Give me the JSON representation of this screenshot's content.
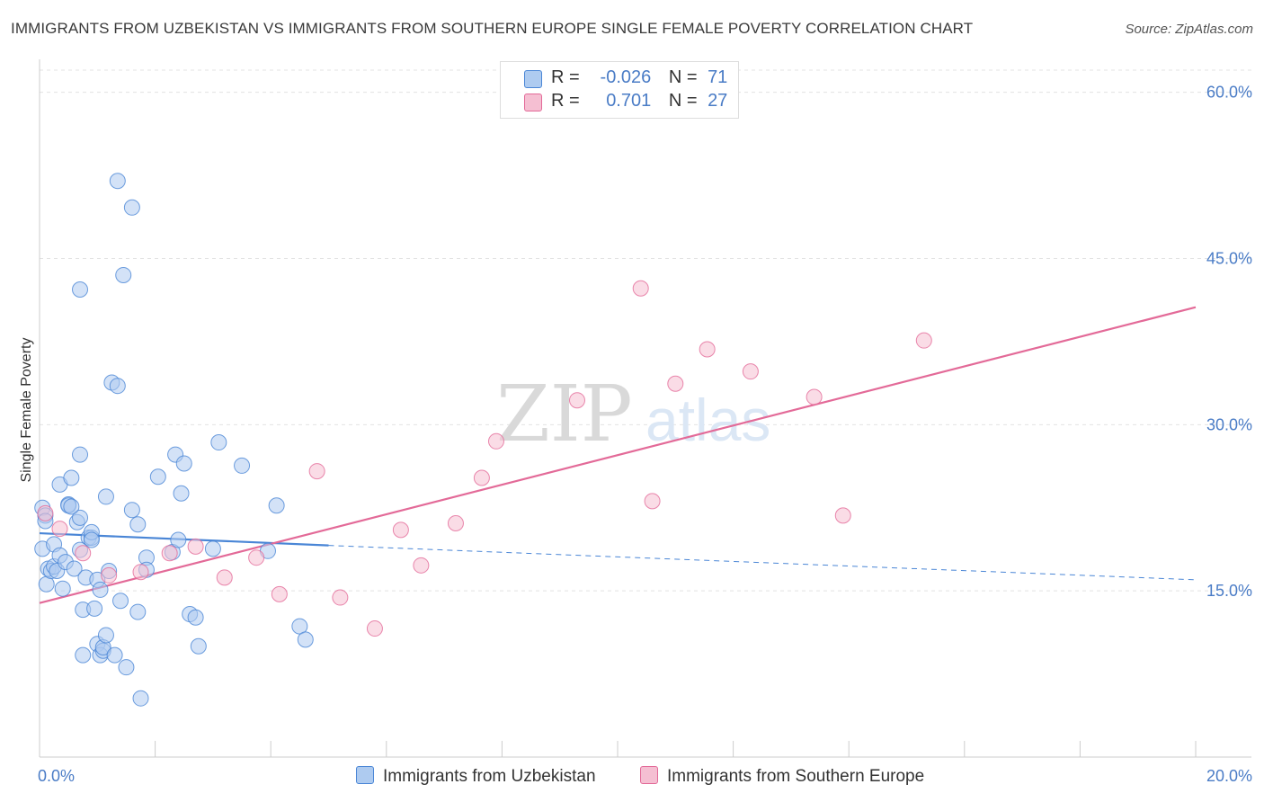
{
  "title": "IMMIGRANTS FROM UZBEKISTAN VS IMMIGRANTS FROM SOUTHERN EUROPE SINGLE FEMALE POVERTY CORRELATION CHART",
  "source": "Source: ZipAtlas.com",
  "watermark": {
    "zip": "ZIP",
    "atlas": "atlas"
  },
  "colors": {
    "blue": "#4a86d6",
    "blue_fill": "#aecbf0",
    "pink": "#e36a98",
    "pink_fill": "#f5bfd2",
    "tick_text": "#4a7cc6"
  },
  "legend": {
    "rows": [
      {
        "r_label": "R =",
        "r_value": "-0.026",
        "n_label": "N =",
        "n_value": "71"
      },
      {
        "r_label": "R =",
        "r_value": "0.701",
        "n_label": "N =",
        "n_value": "27"
      }
    ]
  },
  "bottom_legend": {
    "blue": "Immigrants from Uzbekistan",
    "pink": "Immigrants from Southern Europe"
  },
  "chart_data": {
    "type": "scatter",
    "xlabel": "",
    "ylabel": "Single Female Poverty",
    "xlim": [
      0,
      20
    ],
    "ylim": [
      0,
      62
    ],
    "x_tick_labels": [
      {
        "value": 0,
        "label": "0.0%"
      },
      {
        "value": 20,
        "label": "20.0%"
      }
    ],
    "y_tick_labels": [
      {
        "value": 15,
        "label": "15.0%"
      },
      {
        "value": 30,
        "label": "30.0%"
      },
      {
        "value": 45,
        "label": "45.0%"
      },
      {
        "value": 60,
        "label": "60.0%"
      }
    ],
    "series": [
      {
        "name": "Immigrants from Uzbekistan",
        "color": "#4a86d6",
        "points": [
          [
            0.05,
            18.8
          ],
          [
            0.05,
            22.5
          ],
          [
            0.1,
            21.8
          ],
          [
            0.12,
            15.6
          ],
          [
            0.15,
            17.0
          ],
          [
            0.2,
            16.8
          ],
          [
            0.25,
            19.2
          ],
          [
            0.25,
            17.2
          ],
          [
            0.3,
            16.8
          ],
          [
            0.35,
            18.2
          ],
          [
            0.35,
            24.6
          ],
          [
            0.4,
            15.2
          ],
          [
            0.45,
            17.6
          ],
          [
            0.5,
            22.8
          ],
          [
            0.5,
            22.7
          ],
          [
            0.55,
            25.2
          ],
          [
            0.6,
            17.0
          ],
          [
            0.65,
            21.2
          ],
          [
            0.7,
            18.7
          ],
          [
            0.7,
            27.3
          ],
          [
            0.7,
            42.2
          ],
          [
            0.7,
            21.6
          ],
          [
            0.75,
            9.2
          ],
          [
            0.75,
            13.3
          ],
          [
            0.8,
            16.2
          ],
          [
            0.85,
            19.8
          ],
          [
            0.9,
            19.8
          ],
          [
            0.9,
            20.3
          ],
          [
            0.9,
            19.6
          ],
          [
            0.95,
            13.4
          ],
          [
            1.0,
            16.0
          ],
          [
            1.0,
            10.2
          ],
          [
            1.05,
            9.2
          ],
          [
            1.05,
            15.1
          ],
          [
            1.1,
            9.6
          ],
          [
            1.1,
            9.9
          ],
          [
            1.15,
            11.0
          ],
          [
            1.15,
            23.5
          ],
          [
            1.2,
            16.8
          ],
          [
            1.25,
            33.8
          ],
          [
            1.3,
            9.2
          ],
          [
            1.35,
            33.5
          ],
          [
            1.35,
            52.0
          ],
          [
            1.4,
            14.1
          ],
          [
            1.45,
            43.5
          ],
          [
            1.5,
            8.1
          ],
          [
            1.6,
            22.3
          ],
          [
            1.6,
            49.6
          ],
          [
            1.7,
            21.0
          ],
          [
            1.7,
            13.1
          ],
          [
            1.75,
            5.3
          ],
          [
            1.85,
            18.0
          ],
          [
            1.85,
            16.9
          ],
          [
            2.05,
            25.3
          ],
          [
            2.3,
            18.5
          ],
          [
            2.35,
            27.3
          ],
          [
            2.4,
            19.6
          ],
          [
            2.45,
            23.8
          ],
          [
            2.5,
            26.5
          ],
          [
            2.6,
            12.9
          ],
          [
            2.7,
            12.6
          ],
          [
            2.75,
            10.0
          ],
          [
            3.0,
            18.8
          ],
          [
            3.1,
            28.4
          ],
          [
            3.5,
            26.3
          ],
          [
            3.95,
            18.6
          ],
          [
            4.1,
            22.7
          ],
          [
            4.5,
            11.8
          ],
          [
            4.6,
            10.6
          ],
          [
            0.1,
            21.3
          ],
          [
            0.55,
            22.6
          ]
        ]
      },
      {
        "name": "Immigrants from Southern Europe",
        "color": "#e36a98",
        "points": [
          [
            0.1,
            22.0
          ],
          [
            0.35,
            20.6
          ],
          [
            0.75,
            18.4
          ],
          [
            1.2,
            16.4
          ],
          [
            1.75,
            16.7
          ],
          [
            2.25,
            18.4
          ],
          [
            2.7,
            19.0
          ],
          [
            3.2,
            16.2
          ],
          [
            3.75,
            18.0
          ],
          [
            4.15,
            14.7
          ],
          [
            4.8,
            25.8
          ],
          [
            5.2,
            14.4
          ],
          [
            5.8,
            11.6
          ],
          [
            6.25,
            20.5
          ],
          [
            6.6,
            17.3
          ],
          [
            7.2,
            21.1
          ],
          [
            7.65,
            25.2
          ],
          [
            7.9,
            28.5
          ],
          [
            9.3,
            32.2
          ],
          [
            10.4,
            42.3
          ],
          [
            10.6,
            23.1
          ],
          [
            11.0,
            33.7
          ],
          [
            11.55,
            36.8
          ],
          [
            12.3,
            34.8
          ],
          [
            13.4,
            32.5
          ],
          [
            13.9,
            21.8
          ],
          [
            15.3,
            37.6
          ]
        ]
      }
    ],
    "trend_lines": [
      {
        "series": "Immigrants from Uzbekistan",
        "solid": [
          [
            0.0,
            20.2
          ],
          [
            5.0,
            19.1
          ]
        ],
        "dashed": [
          [
            5.0,
            19.1
          ],
          [
            20.0,
            16.0
          ]
        ]
      },
      {
        "series": "Immigrants from Southern Europe",
        "solid": [
          [
            0.0,
            13.9
          ],
          [
            20.0,
            40.6
          ]
        ]
      }
    ]
  }
}
